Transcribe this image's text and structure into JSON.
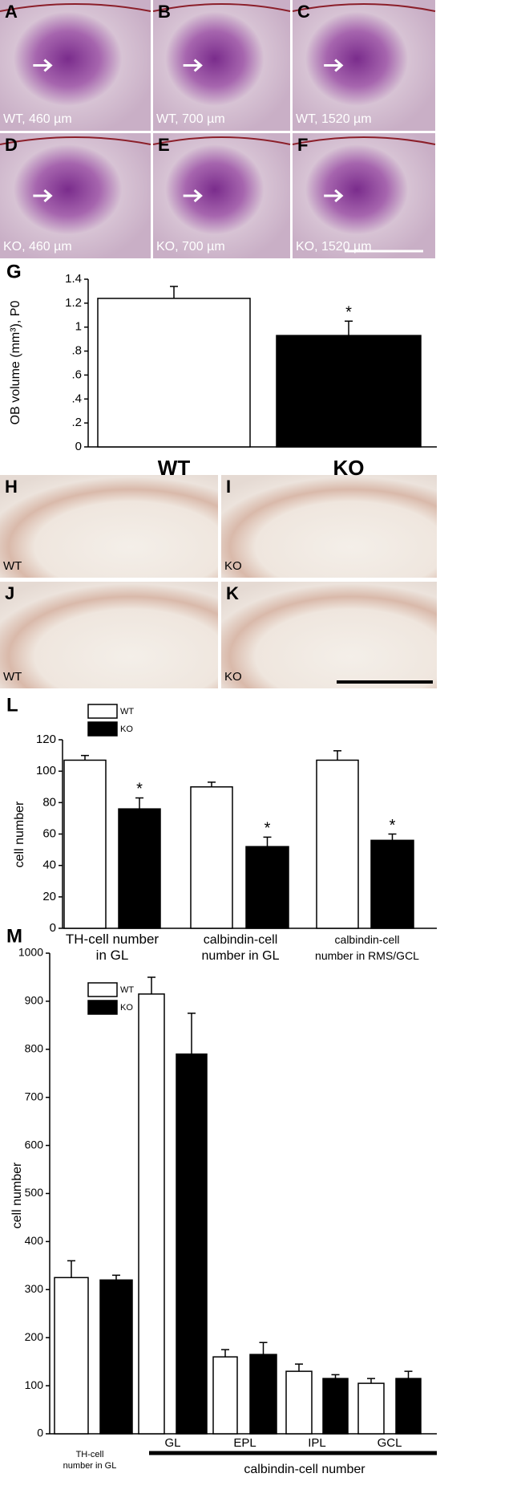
{
  "micrographs": [
    {
      "letter": "A",
      "caption": "WT, 460 µm"
    },
    {
      "letter": "B",
      "caption": "WT, 700 µm"
    },
    {
      "letter": "C",
      "caption": "WT, 1520 µm"
    },
    {
      "letter": "D",
      "caption": "KO, 460 µm"
    },
    {
      "letter": "E",
      "caption": "KO, 700 µm"
    },
    {
      "letter": "F",
      "caption": "KO, 1520 µm"
    },
    {
      "letter": "H",
      "caption": "WT"
    },
    {
      "letter": "I",
      "caption": "KO"
    },
    {
      "letter": "J",
      "caption": "WT"
    },
    {
      "letter": "K",
      "caption": "KO"
    }
  ],
  "chart_data": [
    {
      "type": "bar",
      "panel": "G",
      "y_label": "OB volume (mm³), P0",
      "categories": [
        "WT",
        "KO"
      ],
      "series": [
        {
          "colors": [
            "#ffffff",
            "#000000"
          ],
          "values": [
            1.24,
            0.93
          ],
          "errors": [
            0.1,
            0.12
          ]
        }
      ],
      "annotations": [
        {
          "category": "KO",
          "text": "*"
        }
      ],
      "ylim": [
        0,
        1.4
      ],
      "yticks": [
        0,
        {
          "value": 0.2,
          "label": ".2"
        },
        {
          "value": 0.4,
          "label": ".4"
        },
        {
          "value": 0.6,
          "label": ".6"
        },
        {
          "value": 0.8,
          "label": ".8"
        },
        1,
        1.2,
        1.4
      ]
    },
    {
      "type": "bar",
      "panel": "L",
      "y_label": "cell number",
      "categories": [
        "TH-cell number\nin GL",
        "calbindin-cell\nnumber in GL",
        "calbindin-cell\nnumber in RMS/GCL"
      ],
      "series": [
        {
          "name": "WT",
          "color": "#ffffff",
          "values": [
            107,
            90,
            107
          ],
          "errors": [
            3,
            3,
            6
          ]
        },
        {
          "name": "KO",
          "color": "#000000",
          "values": [
            76,
            52,
            56
          ],
          "errors": [
            7,
            6,
            4
          ]
        }
      ],
      "annotations": [
        {
          "category": "TH-cell number\nin GL",
          "series": "KO",
          "text": "*"
        },
        {
          "category": "calbindin-cell\nnumber in GL",
          "series": "KO",
          "text": "*"
        },
        {
          "category": "calbindin-cell\nnumber in RMS/GCL",
          "series": "KO",
          "text": "*"
        }
      ],
      "ylim": [
        0,
        120
      ],
      "yticks": [
        0,
        20,
        40,
        60,
        80,
        100,
        120
      ]
    },
    {
      "type": "bar",
      "panel": "M",
      "y_label": "cell number",
      "categories": [
        "TH-cell\nnumber  in GL",
        "GL",
        "EPL",
        "IPL",
        "GCL"
      ],
      "group_label": "calbindin-cell number",
      "series": [
        {
          "name": "WT",
          "color": "#ffffff",
          "values": [
            325,
            915,
            160,
            130,
            105
          ],
          "errors": [
            35,
            35,
            15,
            15,
            10
          ]
        },
        {
          "name": "KO",
          "color": "#000000",
          "values": [
            320,
            790,
            165,
            115,
            115
          ],
          "errors": [
            10,
            85,
            25,
            8,
            15
          ]
        }
      ],
      "ylim": [
        0,
        1000
      ],
      "yticks": [
        0,
        100,
        200,
        300,
        400,
        500,
        600,
        700,
        800,
        900,
        1000
      ]
    }
  ]
}
